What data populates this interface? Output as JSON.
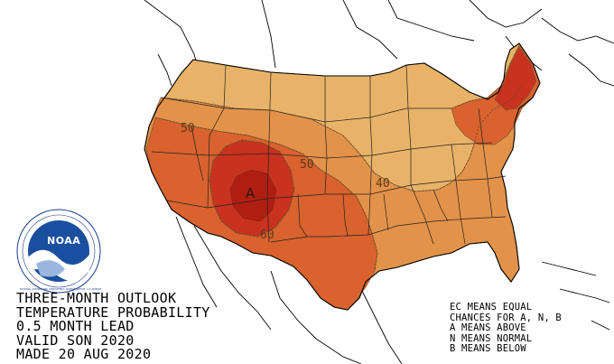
{
  "title_lines": [
    "THREE-MONTH OUTLOOK",
    "TEMPERATURE PROBABILITY",
    "0.5 MONTH LEAD",
    "VALID SON 2020",
    "MADE 20 AUG 2020"
  ],
  "legend_lines": [
    "EC MEANS EQUAL",
    "CHANCES FOR A, N, B",
    "A MEANS ABOVE",
    "N MEANS NORMAL",
    "B MEANS BELOW"
  ],
  "contour_labels": {
    "c40": "40",
    "c50_west": "50",
    "c50_center": "50",
    "c60": "60"
  },
  "category_letter": "A",
  "logo": {
    "text": "NOAA",
    "ring_text": "NATIONAL OCEANIC AND ATMOSPHERIC ADMINISTRATION · U.S. DEPARTMENT OF COMMERCE"
  },
  "colors": {
    "p33_40": "#e8b368",
    "p40_50": "#e3924a",
    "p50_60": "#d9622e",
    "p60_70": "#c8321f",
    "p70_80": "#b01e12"
  }
}
